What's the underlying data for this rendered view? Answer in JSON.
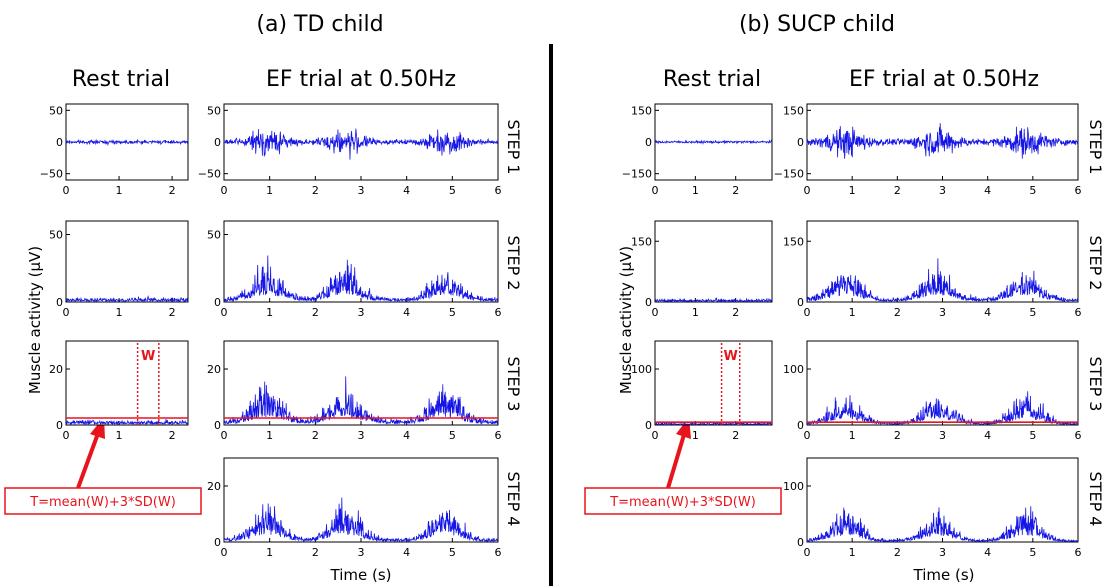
{
  "chart_data": {
    "type": "line",
    "ylabel": "Muscle activity (μV)",
    "xlabel": "Time (s)",
    "annotation_formula": "T=mean(W)+3*SD(W)",
    "window_label": "W",
    "row_labels": [
      "STEP 1",
      "STEP 2",
      "STEP 3",
      "STEP 4"
    ],
    "panels": [
      {
        "title": "(a) TD child",
        "rest_title": "Rest trial",
        "ef_title": "EF trial at 0.50Hz",
        "rest_xlim": [
          0,
          2.3
        ],
        "rest_xticks": [
          0,
          1,
          2
        ],
        "ef_xlim": [
          0,
          6
        ],
        "ef_xticks": [
          0,
          1,
          2,
          3,
          4,
          5,
          6
        ],
        "steps": [
          {
            "label": "STEP 1",
            "ylim": [
              -60,
              60
            ],
            "yticks": [
              -50,
              0,
              50
            ],
            "rest_amp": 5,
            "ef_base": 6,
            "ef_burst": 34,
            "peak_times": [
              0.95,
              2.65,
              4.85
            ]
          },
          {
            "label": "STEP 2",
            "ylim": [
              0,
              60
            ],
            "yticks": [
              0,
              50
            ],
            "rest_amp": 4,
            "ef_base": 4,
            "ef_burst": 30,
            "peak_times": [
              0.95,
              2.65,
              4.85
            ]
          },
          {
            "label": "STEP 3",
            "ylim": [
              0,
              30
            ],
            "yticks": [
              0,
              20
            ],
            "rest_amp": 2.2,
            "ef_base": 2.5,
            "ef_burst": 16,
            "peak_times": [
              0.95,
              2.65,
              4.85
            ],
            "threshold": 2.5,
            "window": [
              1.35,
              1.75
            ]
          },
          {
            "label": "STEP 4",
            "ylim": [
              0,
              30
            ],
            "yticks": [
              0,
              20
            ],
            "ef_base": 1.5,
            "ef_burst": 16,
            "peak_times": [
              0.95,
              2.65,
              4.85
            ]
          }
        ]
      },
      {
        "title": "(b) SUCP child",
        "rest_title": "Rest trial",
        "ef_title": "EF trial at 0.50Hz",
        "rest_xlim": [
          0,
          2.9
        ],
        "rest_xticks": [
          0,
          1,
          2
        ],
        "ef_xlim": [
          0,
          6
        ],
        "ef_xticks": [
          0,
          1,
          2,
          3,
          4,
          5,
          6
        ],
        "steps": [
          {
            "label": "STEP 1",
            "ylim": [
              -180,
              180
            ],
            "yticks": [
              -150,
              0,
              150
            ],
            "rest_amp": 10,
            "ef_base": 25,
            "ef_burst": 110,
            "peak_times": [
              0.85,
              2.9,
              4.85
            ]
          },
          {
            "label": "STEP 2",
            "ylim": [
              0,
              200
            ],
            "yticks": [
              0,
              150
            ],
            "rest_amp": 10,
            "ef_base": 12,
            "ef_burst": 100,
            "peak_times": [
              0.85,
              2.9,
              4.85
            ]
          },
          {
            "label": "STEP 3",
            "ylim": [
              0,
              150
            ],
            "yticks": [
              0,
              100
            ],
            "rest_amp": 5,
            "ef_base": 5,
            "ef_burst": 70,
            "peak_times": [
              0.85,
              2.9,
              4.85
            ],
            "threshold": 5,
            "window": [
              1.65,
              2.1
            ]
          },
          {
            "label": "STEP 4",
            "ylim": [
              0,
              150
            ],
            "yticks": [
              0,
              100
            ],
            "ef_base": 5,
            "ef_burst": 70,
            "peak_times": [
              0.85,
              2.9,
              4.85
            ]
          }
        ]
      }
    ]
  }
}
